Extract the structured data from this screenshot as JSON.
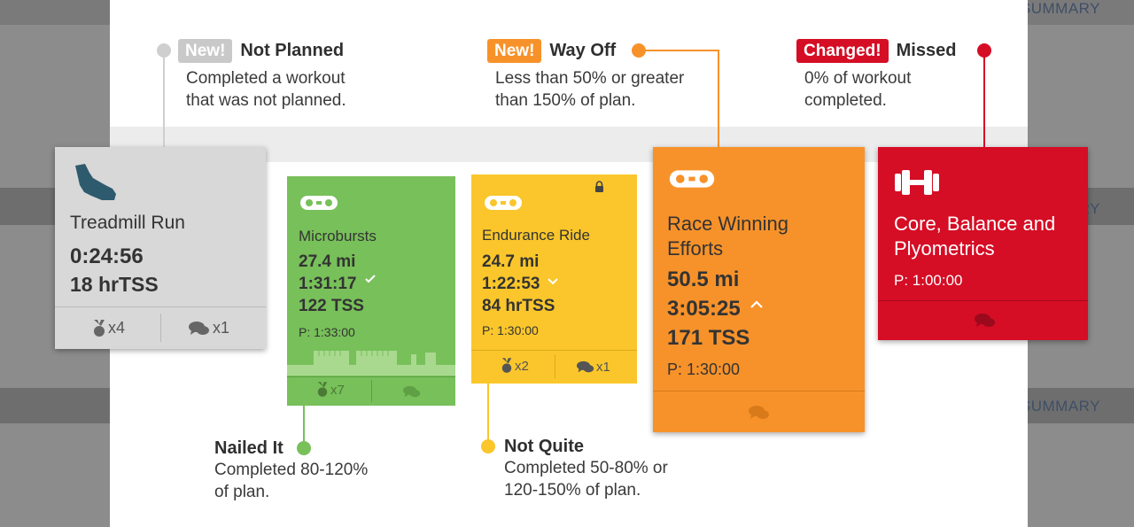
{
  "background": {
    "top_right_label": "SUMMARY",
    "mid_right_label": "RY",
    "bottom_right_label": "SUMMARY"
  },
  "legend": {
    "not_planned": {
      "badge": "New!",
      "title": "Not Planned",
      "desc": "Completed a workout\nthat was not planned."
    },
    "way_off": {
      "badge": "New!",
      "title": "Way Off",
      "desc": "Less than 50% or greater\nthan 150% of plan."
    },
    "missed": {
      "badge": "Changed!",
      "title": "Missed",
      "desc": "0% of workout\ncompleted."
    },
    "nailed_it": {
      "title": "Nailed It",
      "desc": "Completed 80-120%\nof plan."
    },
    "not_quite": {
      "title": "Not Quite",
      "desc": "Completed 50-80% or\n120-150% of plan."
    }
  },
  "colors": {
    "gray_card": "#d8d8d8",
    "green": "#78c05a",
    "yellow": "#fac62b",
    "orange": "#f7922a",
    "red": "#d50d25",
    "badge_gray": "#c9c9c9",
    "badge_orange": "#f7922a",
    "badge_red": "#d50d25"
  },
  "cards": {
    "treadmill": {
      "icon": "running-shoe-icon",
      "name": "Treadmill Run",
      "duration": "0:24:56",
      "tss": "18 hrTSS",
      "footer_medals": "x4",
      "footer_comments": "x1"
    },
    "microbursts": {
      "icon": "bike-chain-icon",
      "name": "Microbursts",
      "distance": "27.4 mi",
      "duration": "1:31:17",
      "tss": "122 TSS",
      "planned": "P: 1:33:00",
      "footer_medals": "x7"
    },
    "endurance": {
      "icon": "bike-chain-icon",
      "name": "Endurance Ride",
      "distance": "24.7 mi",
      "duration": "1:22:53",
      "tss": "84 hrTSS",
      "planned": "P: 1:30:00",
      "footer_medals": "x2",
      "footer_comments": "x1"
    },
    "race": {
      "icon": "bike-chain-icon",
      "name": "Race Winning\nEfforts",
      "distance": "50.5 mi",
      "duration": "3:05:25",
      "tss": "171 TSS",
      "planned": "P: 1:30:00"
    },
    "core": {
      "icon": "dumbbell-icon",
      "name": "Core, Balance and\nPlyometrics",
      "planned": "P: 1:00:00"
    }
  }
}
